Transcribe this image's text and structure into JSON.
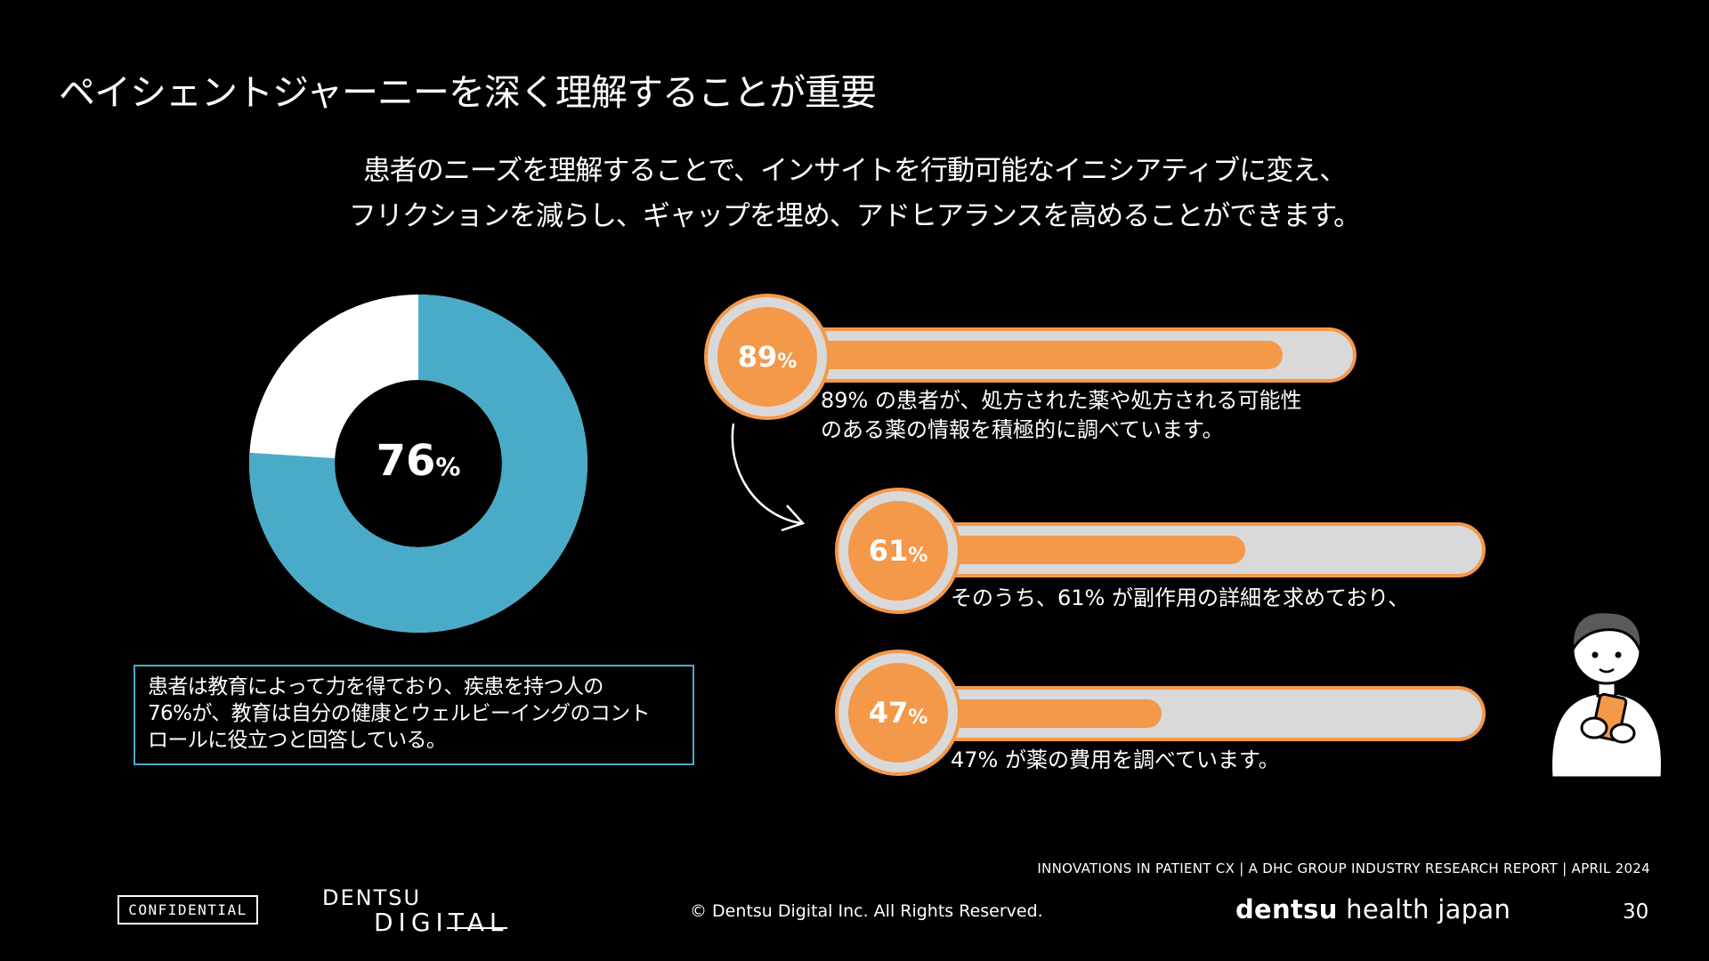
{
  "title": "ペイシェントジャーニーを深く理解することが重要",
  "subtitle": {
    "line1": "患者のニーズを理解することで、インサイトを行動可能なイニシアティブに変え、",
    "line2": "フリクションを減らし、ギャップを埋め、アドヒアランスを高めることができます。"
  },
  "donut": {
    "value": 76,
    "number": "76",
    "unit": "%",
    "colors": {
      "filled": "#4aabc8",
      "remaining": "#ffffff"
    }
  },
  "callout": {
    "lines": [
      "患者は教育によって力を得ており、疾患を持つ人の",
      "76%が、教育は自分の健康とウェルビーイングのコント",
      "ロールに役立つと回答している。"
    ]
  },
  "stats": [
    {
      "value": 89,
      "number": "89",
      "unit": "%",
      "lines": [
        "89% の患者が、処方された薬や処方される可能性",
        "のある薬の情報を積極的に調べています。"
      ]
    },
    {
      "value": 61,
      "number": "61",
      "unit": "%",
      "lines": [
        "そのうち、61% が副作用の詳細を求めており、"
      ]
    },
    {
      "value": 47,
      "number": "47",
      "unit": "%",
      "lines": [
        "47% が薬の費用を調べています。"
      ]
    }
  ],
  "colors": {
    "accent": "#f4984a",
    "track": "#d9d9d9",
    "teal": "#4aabc8",
    "background": "#000000"
  },
  "icons": [
    "curved-arrow-icon",
    "person-with-phone-icon"
  ],
  "footer": {
    "report": "INNOVATIONS IN PATIENT CX | A DHC GROUP INDUSTRY RESEARCH REPORT | APRIL 2024",
    "confidential": "CONFIDENTIAL",
    "logo_line1": "DENTSU",
    "logo_line2": "DIGITAL",
    "copyright": "© Dentsu Digital Inc. All Rights Reserved.",
    "brand_bold": "dentsu",
    "brand_rest": " health japan",
    "page_number": "30"
  }
}
